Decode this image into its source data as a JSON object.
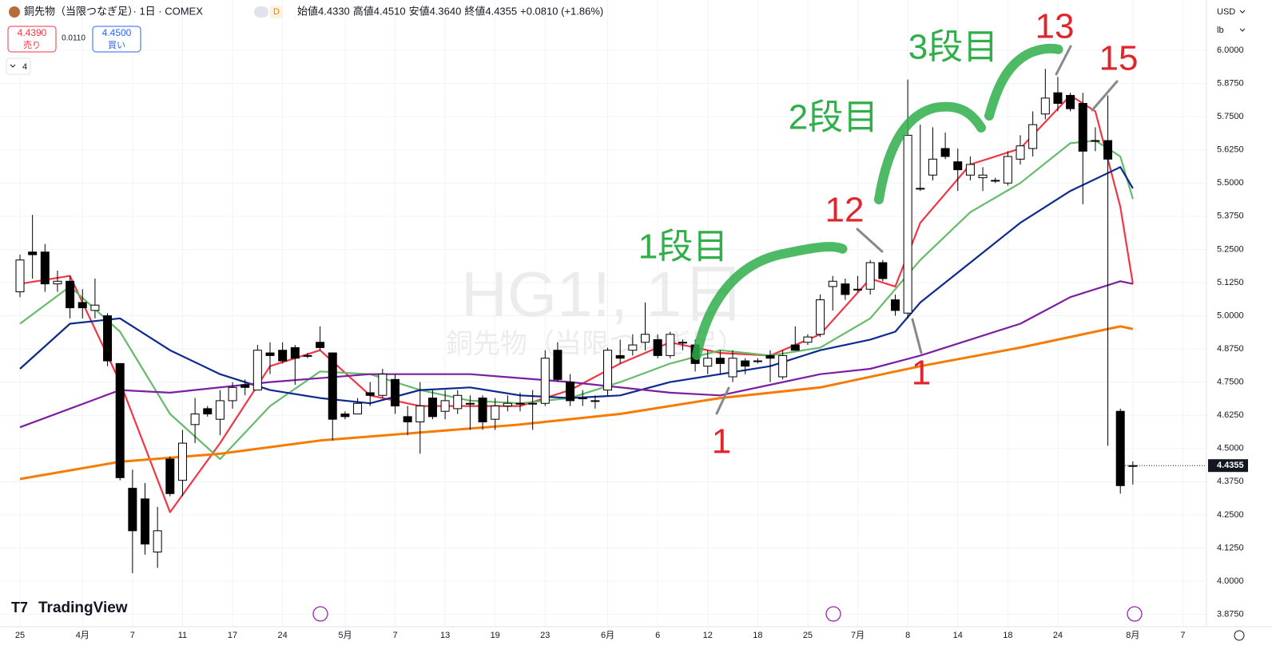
{
  "header": {
    "symbol_title": "銅先物（当限つなぎ足）· 1日 · COMEX",
    "badge": "D",
    "ohlc": [
      {
        "label": "始値",
        "value": "4.4330"
      },
      {
        "label": "高値",
        "value": "4.4510"
      },
      {
        "label": "安値",
        "value": "4.3640"
      },
      {
        "label": "終値",
        "value": "4.4355"
      }
    ],
    "change": "+0.0810 (+1.86%)"
  },
  "trade": {
    "sell_price": "4.4390",
    "sell_label": "売り",
    "spread": "0.0110",
    "buy_price": "4.4500",
    "buy_label": "買い"
  },
  "indicators_count": "4",
  "currency": "USD",
  "unit": "lb",
  "watermark": {
    "symbol": "HG1!, 1日",
    "name": "銅先物（当限つなぎ足）"
  },
  "logo": "TradingView",
  "annotations": {
    "step1": "1段目",
    "step2": "2段目",
    "step3": "3段目",
    "n12": "12",
    "n13": "13",
    "n15": "15",
    "n1a": "1",
    "n1b": "1"
  },
  "chart_data": {
    "type": "candlestick",
    "categories": [
      "25",
      null,
      null,
      null,
      null,
      "4月",
      null,
      null,
      null,
      "7",
      null,
      null,
      null,
      "11",
      null,
      null,
      null,
      "17",
      null,
      null,
      null,
      "24",
      null,
      null,
      null,
      null,
      "5月",
      null,
      null,
      null,
      "7",
      null,
      null,
      null,
      "13",
      null,
      null,
      null,
      "19",
      null,
      null,
      null,
      "23",
      null,
      null,
      null,
      null,
      "6月",
      null,
      null,
      null,
      "6",
      null,
      null,
      null,
      "12",
      null,
      null,
      null,
      "18",
      null,
      null,
      null,
      "25",
      null,
      null,
      null,
      "7月",
      null,
      null,
      null,
      "8",
      null,
      null,
      null,
      "14",
      null,
      null,
      null,
      "18",
      null,
      null,
      null,
      "24",
      null,
      null,
      null,
      null,
      null,
      "8月",
      null,
      null,
      null,
      "7"
    ],
    "open": [
      5.09,
      5.24,
      5.24,
      5.12,
      5.13,
      5.05,
      5.02,
      5.0,
      4.82,
      4.35,
      4.31,
      4.11,
      4.46,
      4.38,
      4.59,
      4.65,
      4.61,
      4.68,
      4.74,
      4.72,
      4.86,
      4.87,
      4.88,
      4.85,
      4.9,
      4.86,
      4.63,
      4.63,
      4.71,
      4.7,
      4.76,
      4.62,
      4.6,
      4.69,
      4.64,
      4.65,
      4.67,
      4.69,
      4.61,
      4.66,
      4.67,
      4.67,
      4.67,
      4.87,
      4.75,
      4.69,
      4.68,
      4.72,
      4.85,
      4.87,
      4.9,
      4.91,
      4.85,
      4.9,
      4.89,
      4.81,
      4.84,
      4.77,
      4.83,
      4.83,
      4.85,
      4.77,
      4.89,
      4.9,
      4.93,
      5.11,
      5.12,
      5.1,
      5.1,
      5.2,
      5.06,
      5.01,
      5.48,
      5.53,
      5.63,
      5.58,
      5.53,
      5.52,
      5.51,
      5.5,
      5.59,
      5.63,
      5.76,
      5.84,
      5.83,
      5.8,
      5.66,
      5.66,
      4.64,
      4.433,
      null,
      null,
      null,
      null
    ],
    "high": [
      5.23,
      5.38,
      5.27,
      5.17,
      5.15,
      5.1,
      5.14,
      5.01,
      4.82,
      4.42,
      4.37,
      4.28,
      4.47,
      4.57,
      4.69,
      4.66,
      4.72,
      4.75,
      4.76,
      4.89,
      4.9,
      4.9,
      4.89,
      4.86,
      4.96,
      4.86,
      4.64,
      4.69,
      4.75,
      4.8,
      4.78,
      4.66,
      4.75,
      4.72,
      4.72,
      4.72,
      4.7,
      4.7,
      4.69,
      4.7,
      4.71,
      4.72,
      4.87,
      4.9,
      4.78,
      4.72,
      4.7,
      4.88,
      4.91,
      4.93,
      5.05,
      4.93,
      4.94,
      4.91,
      4.91,
      4.87,
      4.87,
      4.87,
      4.84,
      4.84,
      4.87,
      4.87,
      4.96,
      4.93,
      5.08,
      5.15,
      5.14,
      5.15,
      5.21,
      5.21,
      5.08,
      5.89,
      5.72,
      5.71,
      5.69,
      5.63,
      5.6,
      5.56,
      5.52,
      5.62,
      5.68,
      5.77,
      5.93,
      5.9,
      5.84,
      5.84,
      5.71,
      5.83,
      4.65,
      4.451,
      null,
      null,
      null,
      null
    ],
    "low": [
      5.07,
      5.14,
      5.09,
      5.09,
      4.99,
      4.99,
      4.99,
      4.81,
      4.38,
      4.03,
      4.1,
      4.05,
      4.32,
      4.32,
      4.52,
      4.62,
      4.55,
      4.65,
      4.7,
      4.72,
      4.78,
      4.82,
      4.74,
      4.84,
      4.87,
      4.53,
      4.61,
      4.63,
      4.66,
      4.69,
      4.63,
      4.55,
      4.48,
      4.61,
      4.61,
      4.63,
      4.57,
      4.57,
      4.57,
      4.64,
      4.64,
      4.57,
      4.66,
      4.75,
      4.66,
      4.66,
      4.65,
      4.7,
      4.82,
      4.85,
      4.87,
      4.84,
      4.84,
      4.87,
      4.79,
      4.78,
      4.78,
      4.75,
      4.78,
      4.82,
      4.75,
      4.76,
      4.87,
      4.89,
      4.92,
      5.02,
      5.06,
      5.09,
      5.08,
      5.13,
      5.0,
      4.99,
      5.47,
      5.51,
      5.59,
      5.47,
      5.51,
      5.47,
      5.5,
      5.49,
      5.57,
      5.6,
      5.74,
      5.77,
      5.77,
      5.42,
      5.62,
      4.51,
      4.33,
      4.364,
      null,
      null,
      null,
      null
    ],
    "close": [
      5.21,
      5.23,
      5.12,
      5.13,
      5.03,
      5.03,
      5.04,
      4.83,
      4.39,
      4.19,
      4.14,
      4.19,
      4.33,
      4.52,
      4.63,
      4.63,
      4.68,
      4.73,
      4.73,
      4.87,
      4.85,
      4.83,
      4.84,
      4.85,
      4.88,
      4.61,
      4.62,
      4.67,
      4.7,
      4.78,
      4.66,
      4.6,
      4.66,
      4.62,
      4.68,
      4.7,
      4.67,
      4.6,
      4.66,
      4.67,
      4.67,
      4.67,
      4.84,
      4.76,
      4.68,
      4.69,
      4.68,
      4.87,
      4.84,
      4.89,
      4.93,
      4.85,
      4.93,
      4.9,
      4.82,
      4.84,
      4.82,
      4.84,
      4.81,
      4.83,
      4.84,
      4.85,
      4.87,
      4.92,
      5.06,
      5.13,
      5.08,
      5.1,
      5.2,
      5.14,
      5.02,
      5.68,
      5.48,
      5.59,
      5.6,
      5.55,
      5.57,
      5.53,
      5.51,
      5.6,
      5.64,
      5.72,
      5.82,
      5.8,
      5.78,
      5.62,
      5.66,
      5.59,
      4.36,
      4.4355,
      null,
      null,
      null,
      null
    ],
    "up_color": "#ffffff",
    "down_color": "#000000",
    "lines": [
      {
        "color": "#f23645",
        "x": [
          0,
          4,
          8,
          12,
          16,
          20,
          24,
          28,
          32,
          36,
          40,
          44,
          48,
          52,
          56,
          60,
          64,
          68,
          70,
          72,
          76,
          80,
          84,
          86,
          88,
          89
        ],
        "values": [
          5.12,
          5.15,
          4.75,
          4.26,
          4.52,
          4.81,
          4.87,
          4.7,
          4.66,
          4.66,
          4.66,
          4.72,
          4.82,
          4.9,
          4.86,
          4.85,
          4.93,
          5.14,
          5.11,
          5.35,
          5.57,
          5.63,
          5.83,
          5.77,
          5.41,
          5.12
        ]
      },
      {
        "color": "#66bb6a",
        "x": [
          0,
          4,
          8,
          12,
          16,
          20,
          24,
          28,
          32,
          36,
          40,
          44,
          48,
          52,
          56,
          60,
          64,
          68,
          72,
          76,
          80,
          84,
          86,
          88,
          89
        ],
        "values": [
          4.97,
          5.11,
          4.94,
          4.63,
          4.46,
          4.66,
          4.79,
          4.78,
          4.72,
          4.68,
          4.67,
          4.69,
          4.75,
          4.82,
          4.87,
          4.85,
          4.88,
          4.99,
          5.21,
          5.39,
          5.5,
          5.65,
          5.66,
          5.6,
          5.44
        ]
      },
      {
        "color": "#0d2a8f",
        "x": [
          0,
          4,
          8,
          12,
          16,
          20,
          24,
          28,
          32,
          36,
          40,
          44,
          48,
          52,
          56,
          60,
          64,
          68,
          70,
          72,
          76,
          80,
          84,
          88,
          89
        ],
        "values": [
          4.8,
          4.97,
          4.99,
          4.87,
          4.78,
          4.72,
          4.69,
          4.67,
          4.72,
          4.73,
          4.7,
          4.69,
          4.7,
          4.75,
          4.78,
          4.81,
          4.87,
          4.91,
          4.94,
          5.05,
          5.2,
          5.35,
          5.47,
          5.56,
          5.48
        ]
      },
      {
        "color": "#7b1fa2",
        "x": [
          0,
          8,
          12,
          20,
          28,
          36,
          44,
          52,
          56,
          60,
          64,
          68,
          72,
          76,
          80,
          84,
          88,
          89
        ],
        "values": [
          4.58,
          4.72,
          4.71,
          4.75,
          4.78,
          4.78,
          4.75,
          4.71,
          4.7,
          4.74,
          4.78,
          4.8,
          4.85,
          4.91,
          4.97,
          5.07,
          5.13,
          5.12
        ]
      },
      {
        "color": "#f57c00",
        "x": [
          0,
          8,
          16,
          24,
          32,
          40,
          48,
          56,
          64,
          72,
          80,
          88,
          89
        ],
        "values": [
          4.385,
          4.45,
          4.48,
          4.53,
          4.56,
          4.59,
          4.63,
          4.69,
          4.73,
          4.81,
          4.88,
          4.96,
          4.95
        ]
      }
    ],
    "last_price": 4.4355,
    "ylim": [
      3.8286,
      6.1895
    ],
    "yticks": [
      {
        "value": 3.875,
        "label": "3.8750"
      },
      {
        "value": 4.0,
        "label": "4.0000"
      },
      {
        "value": 4.125,
        "label": "4.1250"
      },
      {
        "value": 4.25,
        "label": "4.2500"
      },
      {
        "value": 4.375,
        "label": "4.3750"
      },
      {
        "value": 4.5,
        "label": "4.5000"
      },
      {
        "value": 4.625,
        "label": "4.6250"
      },
      {
        "value": 4.75,
        "label": "4.7500"
      },
      {
        "value": 4.875,
        "label": "4.8750"
      },
      {
        "value": 5.0,
        "label": "5.0000"
      },
      {
        "value": 5.125,
        "label": "5.1250"
      },
      {
        "value": 5.25,
        "label": "5.2500"
      },
      {
        "value": 5.375,
        "label": "5.3750"
      },
      {
        "value": 5.5,
        "label": "5.5000"
      },
      {
        "value": 5.625,
        "label": "5.6250"
      },
      {
        "value": 5.75,
        "label": "5.7500"
      },
      {
        "value": 5.875,
        "label": "5.8750"
      },
      {
        "value": 6.0,
        "label": "6.0000"
      }
    ],
    "grid": true
  }
}
